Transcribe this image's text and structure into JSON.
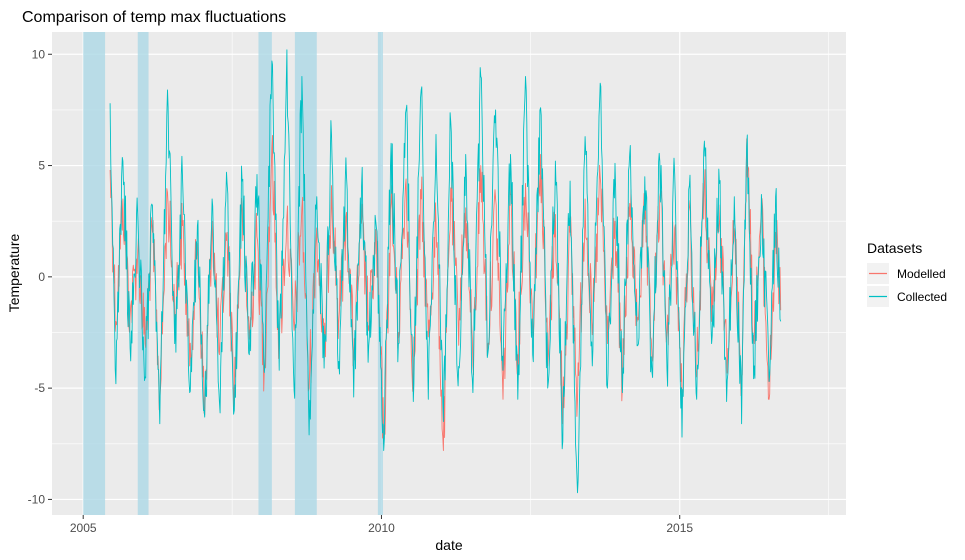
{
  "chart_data": {
    "type": "line",
    "title": "Comparison of temp max fluctuations",
    "xlabel": "date",
    "ylabel": "Temperature",
    "x_range": [
      "2004-06-24",
      "2017-10-15"
    ],
    "ylim": [
      -10.7,
      11.0
    ],
    "x_ticks": [
      {
        "date": "2005-01-01",
        "label": "2005"
      },
      {
        "date": "2010-01-01",
        "label": "2010"
      },
      {
        "date": "2015-01-01",
        "label": "2015"
      }
    ],
    "y_ticks": [
      {
        "value": -10,
        "label": "-10"
      },
      {
        "value": -5,
        "label": "-5"
      },
      {
        "value": 0,
        "label": "0"
      },
      {
        "value": 5,
        "label": "5"
      },
      {
        "value": 10,
        "label": "10"
      }
    ],
    "minor_y_values": [
      -7.5,
      -2.5,
      2.5,
      7.5
    ],
    "minor_x_dates": [
      "2007-07-02",
      "2012-07-01",
      "2017-07-01"
    ],
    "panel_background": "#ebebeb",
    "grid": true,
    "shaded_periods": [
      {
        "start": "2005-01-01",
        "end": "2005-05-15"
      },
      {
        "start": "2005-12-01",
        "end": "2006-02-05"
      },
      {
        "start": "2007-12-10",
        "end": "2008-03-01"
      },
      {
        "start": "2008-07-20",
        "end": "2008-12-01"
      },
      {
        "start": "2009-12-10",
        "end": "2010-01-10"
      }
    ],
    "shade_color": "#add8e6",
    "legend": {
      "title": "Datasets",
      "position": "right",
      "entries": [
        {
          "label": "Modelled",
          "color": "#f8766d"
        },
        {
          "label": "Collected",
          "color": "#00bfc4"
        }
      ]
    },
    "series_time_span": [
      "2005-06-15",
      "2016-09-10"
    ],
    "series": [
      {
        "name": "Modelled",
        "color": "#f8766d",
        "points": [
          [
            "2005-06-15",
            4.8
          ],
          [
            "2005-07-20",
            -2.0
          ],
          [
            "2005-09-01",
            3.5
          ],
          [
            "2005-10-15",
            -1.8
          ],
          [
            "2005-12-01",
            1.2
          ],
          [
            "2006-01-15",
            -3.0
          ],
          [
            "2006-03-01",
            2.0
          ],
          [
            "2006-04-15",
            -5.5
          ],
          [
            "2006-06-01",
            3.8
          ],
          [
            "2006-07-15",
            -1.5
          ],
          [
            "2006-09-01",
            2.3
          ],
          [
            "2006-10-15",
            -4.0
          ],
          [
            "2006-12-01",
            1.5
          ],
          [
            "2007-01-15",
            -6.2
          ],
          [
            "2007-03-01",
            2.5
          ],
          [
            "2007-04-15",
            -3.5
          ],
          [
            "2007-06-01",
            2.0
          ],
          [
            "2007-07-15",
            -5.0
          ],
          [
            "2007-09-01",
            3.0
          ],
          [
            "2007-10-15",
            -2.8
          ],
          [
            "2007-12-01",
            1.8
          ],
          [
            "2008-01-15",
            -4.2
          ],
          [
            "2008-03-01",
            5.8
          ],
          [
            "2008-04-15",
            -3.2
          ],
          [
            "2008-06-01",
            2.7
          ],
          [
            "2008-07-15",
            -2.4
          ],
          [
            "2008-09-01",
            3.1
          ],
          [
            "2008-10-15",
            -5.0
          ],
          [
            "2008-12-01",
            2.2
          ],
          [
            "2009-01-15",
            -3.8
          ],
          [
            "2009-03-01",
            4.1
          ],
          [
            "2009-04-15",
            -2.0
          ],
          [
            "2009-06-01",
            2.9
          ],
          [
            "2009-07-15",
            -3.5
          ],
          [
            "2009-09-01",
            2.4
          ],
          [
            "2009-10-15",
            -2.2
          ],
          [
            "2009-12-01",
            1.6
          ],
          [
            "2010-01-15",
            -7.5
          ],
          [
            "2010-03-01",
            3.3
          ],
          [
            "2010-04-15",
            -2.5
          ],
          [
            "2010-06-01",
            4.4
          ],
          [
            "2010-07-15",
            -4.5
          ],
          [
            "2010-09-01",
            3.5
          ],
          [
            "2010-10-15",
            -2.7
          ],
          [
            "2010-12-01",
            2.5
          ],
          [
            "2011-01-15",
            -7.8
          ],
          [
            "2011-03-01",
            4.0
          ],
          [
            "2011-04-15",
            -2.0
          ],
          [
            "2011-06-01",
            3.1
          ],
          [
            "2011-07-15",
            -4.0
          ],
          [
            "2011-09-01",
            5.0
          ],
          [
            "2011-10-15",
            -3.0
          ],
          [
            "2011-12-01",
            3.5
          ],
          [
            "2012-01-15",
            -5.5
          ],
          [
            "2012-03-01",
            3.7
          ],
          [
            "2012-04-15",
            -3.5
          ],
          [
            "2012-06-01",
            4.2
          ],
          [
            "2012-07-15",
            -2.0
          ],
          [
            "2012-09-01",
            5.5
          ],
          [
            "2012-10-15",
            -4.0
          ],
          [
            "2012-12-01",
            2.8
          ],
          [
            "2013-01-15",
            -6.0
          ],
          [
            "2013-03-01",
            2.0
          ],
          [
            "2013-04-15",
            -5.5
          ],
          [
            "2013-06-01",
            3.5
          ],
          [
            "2013-07-15",
            -2.6
          ],
          [
            "2013-09-01",
            4.5
          ],
          [
            "2013-10-15",
            -3.0
          ],
          [
            "2013-12-01",
            2.5
          ],
          [
            "2014-01-15",
            -5.0
          ],
          [
            "2014-03-01",
            3.3
          ],
          [
            "2014-04-15",
            -2.0
          ],
          [
            "2014-06-01",
            2.6
          ],
          [
            "2014-07-15",
            -3.6
          ],
          [
            "2014-09-01",
            3.6
          ],
          [
            "2014-10-15",
            -2.4
          ],
          [
            "2014-12-01",
            2.2
          ],
          [
            "2015-01-15",
            -5.5
          ],
          [
            "2015-03-01",
            3.1
          ],
          [
            "2015-04-15",
            -4.5
          ],
          [
            "2015-06-01",
            4.2
          ],
          [
            "2015-07-15",
            -2.0
          ],
          [
            "2015-09-01",
            2.4
          ],
          [
            "2015-10-15",
            -3.2
          ],
          [
            "2015-12-01",
            2.0
          ],
          [
            "2016-01-15",
            -4.5
          ],
          [
            "2016-02-15",
            6.2
          ],
          [
            "2016-04-01",
            -3.0
          ],
          [
            "2016-05-15",
            3.0
          ],
          [
            "2016-07-01",
            -5.5
          ],
          [
            "2016-08-10",
            2.0
          ],
          [
            "2016-09-10",
            -1.5
          ]
        ]
      },
      {
        "name": "Collected",
        "color": "#00bfc4",
        "points": [
          [
            "2005-06-15",
            7.8
          ],
          [
            "2005-07-20",
            -4.8
          ],
          [
            "2005-09-01",
            5.2
          ],
          [
            "2005-10-15",
            -3.2
          ],
          [
            "2005-12-01",
            2.7
          ],
          [
            "2006-01-15",
            -4.5
          ],
          [
            "2006-03-01",
            3.2
          ],
          [
            "2006-04-15",
            -6.6
          ],
          [
            "2006-06-01",
            8.4
          ],
          [
            "2006-07-15",
            -3.0
          ],
          [
            "2006-09-01",
            4.5
          ],
          [
            "2006-10-15",
            -5.2
          ],
          [
            "2006-12-01",
            2.3
          ],
          [
            "2007-01-15",
            -6.3
          ],
          [
            "2007-03-01",
            3.5
          ],
          [
            "2007-04-15",
            -5.6
          ],
          [
            "2007-06-01",
            4.2
          ],
          [
            "2007-07-15",
            -6.0
          ],
          [
            "2007-09-01",
            4.3
          ],
          [
            "2007-10-15",
            -3.5
          ],
          [
            "2007-12-01",
            4.6
          ],
          [
            "2008-01-15",
            -4.3
          ],
          [
            "2008-03-01",
            9.7
          ],
          [
            "2008-04-15",
            -4.2
          ],
          [
            "2008-06-01",
            10.2
          ],
          [
            "2008-07-15",
            -5.1
          ],
          [
            "2008-09-01",
            9.0
          ],
          [
            "2008-10-15",
            -7.1
          ],
          [
            "2008-12-01",
            3.6
          ],
          [
            "2009-01-15",
            -4.1
          ],
          [
            "2009-03-01",
            6.4
          ],
          [
            "2009-04-15",
            -3.8
          ],
          [
            "2009-06-01",
            4.5
          ],
          [
            "2009-07-15",
            -5.4
          ],
          [
            "2009-09-01",
            4.0
          ],
          [
            "2009-10-15",
            -3.1
          ],
          [
            "2009-12-01",
            2.2
          ],
          [
            "2010-01-15",
            -7.8
          ],
          [
            "2010-03-01",
            6.0
          ],
          [
            "2010-04-15",
            -3.0
          ],
          [
            "2010-06-01",
            7.5
          ],
          [
            "2010-07-15",
            -5.6
          ],
          [
            "2010-09-01",
            8.4
          ],
          [
            "2010-10-15",
            -5.5
          ],
          [
            "2010-12-01",
            6.4
          ],
          [
            "2011-01-15",
            -6.5
          ],
          [
            "2011-03-01",
            7.0
          ],
          [
            "2011-04-15",
            -4.9
          ],
          [
            "2011-06-01",
            5.5
          ],
          [
            "2011-07-15",
            -5.2
          ],
          [
            "2011-09-01",
            9.0
          ],
          [
            "2011-10-15",
            -3.4
          ],
          [
            "2011-12-01",
            7.5
          ],
          [
            "2012-01-15",
            -4.2
          ],
          [
            "2012-03-01",
            5.5
          ],
          [
            "2012-04-15",
            -5.5
          ],
          [
            "2012-06-01",
            9.0
          ],
          [
            "2012-07-15",
            -3.5
          ],
          [
            "2012-09-01",
            7.6
          ],
          [
            "2012-10-15",
            -5.0
          ],
          [
            "2012-12-01",
            5.2
          ],
          [
            "2013-01-15",
            -7.4
          ],
          [
            "2013-03-01",
            4.3
          ],
          [
            "2013-04-15",
            -9.7
          ],
          [
            "2013-06-01",
            6.3
          ],
          [
            "2013-07-15",
            -4.0
          ],
          [
            "2013-09-01",
            8.7
          ],
          [
            "2013-10-15",
            -5.0
          ],
          [
            "2013-12-01",
            5.1
          ],
          [
            "2014-01-15",
            -5.2
          ],
          [
            "2014-03-01",
            5.5
          ],
          [
            "2014-04-15",
            -3.1
          ],
          [
            "2014-06-01",
            4.5
          ],
          [
            "2014-07-15",
            -4.3
          ],
          [
            "2014-09-01",
            5.2
          ],
          [
            "2014-10-15",
            -4.2
          ],
          [
            "2014-12-01",
            4.6
          ],
          [
            "2015-01-15",
            -7.2
          ],
          [
            "2015-03-01",
            4.1
          ],
          [
            "2015-04-15",
            -5.5
          ],
          [
            "2015-06-01",
            6.1
          ],
          [
            "2015-07-15",
            -3.0
          ],
          [
            "2015-09-01",
            4.2
          ],
          [
            "2015-10-15",
            -5.6
          ],
          [
            "2015-12-01",
            3.6
          ],
          [
            "2016-01-15",
            -6.6
          ],
          [
            "2016-02-15",
            5.9
          ],
          [
            "2016-04-01",
            -4.0
          ],
          [
            "2016-05-15",
            3.7
          ],
          [
            "2016-07-01",
            -4.7
          ],
          [
            "2016-08-10",
            3.6
          ],
          [
            "2016-09-10",
            -2.0
          ]
        ]
      }
    ]
  }
}
